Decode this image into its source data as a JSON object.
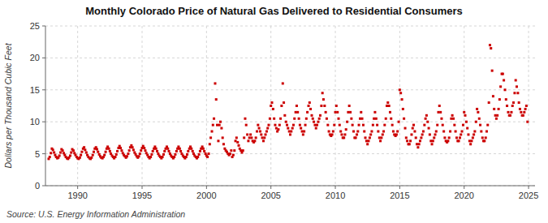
{
  "chart_data": {
    "type": "scatter",
    "title": "Monthly Colorado Price of Natural Gas Delivered to Residential Consumers",
    "ylabel": "Dollars per Thousand Cubic Feet",
    "source": "Source: U.S. Energy Information Administration",
    "color": "#cc0000",
    "marker": "square",
    "grid": true,
    "xlim": [
      1987.5,
      2025.5
    ],
    "ylim": [
      0,
      25
    ],
    "xticks": [
      1990,
      1995,
      2000,
      2005,
      2010,
      2015,
      2020,
      2025
    ],
    "yticks": [
      0,
      5,
      10,
      15,
      20,
      25
    ],
    "x": [
      1987.75,
      1987.83,
      1987.92,
      1988.0,
      1988.08,
      1988.17,
      1988.25,
      1988.33,
      1988.42,
      1988.5,
      1988.58,
      1988.67,
      1988.75,
      1988.83,
      1988.92,
      1989.0,
      1989.08,
      1989.17,
      1989.25,
      1989.33,
      1989.42,
      1989.5,
      1989.58,
      1989.67,
      1989.75,
      1989.83,
      1989.92,
      1990.0,
      1990.08,
      1990.17,
      1990.25,
      1990.33,
      1990.42,
      1990.5,
      1990.58,
      1990.67,
      1990.75,
      1990.83,
      1990.92,
      1991.0,
      1991.08,
      1991.17,
      1991.25,
      1991.33,
      1991.42,
      1991.5,
      1991.58,
      1991.67,
      1991.75,
      1991.83,
      1991.92,
      1992.0,
      1992.08,
      1992.17,
      1992.25,
      1992.33,
      1992.42,
      1992.5,
      1992.58,
      1992.67,
      1992.75,
      1992.83,
      1992.92,
      1993.0,
      1993.08,
      1993.17,
      1993.25,
      1993.33,
      1993.42,
      1993.5,
      1993.58,
      1993.67,
      1993.75,
      1993.83,
      1993.92,
      1994.0,
      1994.08,
      1994.17,
      1994.25,
      1994.33,
      1994.42,
      1994.5,
      1994.58,
      1994.67,
      1994.75,
      1994.83,
      1994.92,
      1995.0,
      1995.08,
      1995.17,
      1995.25,
      1995.33,
      1995.42,
      1995.5,
      1995.58,
      1995.67,
      1995.75,
      1995.83,
      1995.92,
      1996.0,
      1996.08,
      1996.17,
      1996.25,
      1996.33,
      1996.42,
      1996.5,
      1996.58,
      1996.67,
      1996.75,
      1996.83,
      1996.92,
      1997.0,
      1997.08,
      1997.17,
      1997.25,
      1997.33,
      1997.42,
      1997.5,
      1997.58,
      1997.67,
      1997.75,
      1997.83,
      1997.92,
      1998.0,
      1998.08,
      1998.17,
      1998.25,
      1998.33,
      1998.42,
      1998.5,
      1998.58,
      1998.67,
      1998.75,
      1998.83,
      1998.92,
      1999.0,
      1999.08,
      1999.17,
      1999.25,
      1999.33,
      1999.42,
      1999.5,
      1999.58,
      1999.67,
      1999.75,
      1999.83,
      1999.92,
      2000.0,
      2000.08,
      2000.17,
      2000.25,
      2000.33,
      2000.42,
      2000.5,
      2000.58,
      2000.67,
      2000.75,
      2000.83,
      2000.92,
      2001.0,
      2001.08,
      2001.17,
      2001.25,
      2001.33,
      2001.42,
      2001.5,
      2001.58,
      2001.67,
      2001.75,
      2001.83,
      2001.92,
      2002.0,
      2002.08,
      2002.17,
      2002.25,
      2002.33,
      2002.42,
      2002.5,
      2002.58,
      2002.67,
      2002.75,
      2002.83,
      2002.92,
      2003.0,
      2003.08,
      2003.17,
      2003.25,
      2003.33,
      2003.42,
      2003.5,
      2003.58,
      2003.67,
      2003.75,
      2003.83,
      2003.92,
      2004.0,
      2004.08,
      2004.17,
      2004.25,
      2004.33,
      2004.42,
      2004.5,
      2004.58,
      2004.67,
      2004.75,
      2004.83,
      2004.92,
      2005.0,
      2005.08,
      2005.17,
      2005.25,
      2005.33,
      2005.42,
      2005.5,
      2005.58,
      2005.67,
      2005.75,
      2005.83,
      2005.92,
      2006.0,
      2006.08,
      2006.17,
      2006.25,
      2006.33,
      2006.42,
      2006.5,
      2006.58,
      2006.67,
      2006.75,
      2006.83,
      2006.92,
      2007.0,
      2007.08,
      2007.17,
      2007.25,
      2007.33,
      2007.42,
      2007.5,
      2007.58,
      2007.67,
      2007.75,
      2007.83,
      2007.92,
      2008.0,
      2008.08,
      2008.17,
      2008.25,
      2008.33,
      2008.42,
      2008.5,
      2008.58,
      2008.67,
      2008.75,
      2008.83,
      2008.92,
      2009.0,
      2009.08,
      2009.17,
      2009.25,
      2009.33,
      2009.42,
      2009.5,
      2009.58,
      2009.67,
      2009.75,
      2009.83,
      2009.92,
      2010.0,
      2010.08,
      2010.17,
      2010.25,
      2010.33,
      2010.42,
      2010.5,
      2010.58,
      2010.67,
      2010.75,
      2010.83,
      2010.92,
      2011.0,
      2011.08,
      2011.17,
      2011.25,
      2011.33,
      2011.42,
      2011.5,
      2011.58,
      2011.67,
      2011.75,
      2011.83,
      2011.92,
      2012.0,
      2012.08,
      2012.17,
      2012.25,
      2012.33,
      2012.42,
      2012.5,
      2012.58,
      2012.67,
      2012.75,
      2012.83,
      2012.92,
      2013.0,
      2013.08,
      2013.17,
      2013.25,
      2013.33,
      2013.42,
      2013.5,
      2013.58,
      2013.67,
      2013.75,
      2013.83,
      2013.92,
      2014.0,
      2014.08,
      2014.17,
      2014.25,
      2014.33,
      2014.42,
      2014.5,
      2014.58,
      2014.67,
      2014.75,
      2014.83,
      2014.92,
      2015.0,
      2015.08,
      2015.17,
      2015.25,
      2015.33,
      2015.42,
      2015.5,
      2015.58,
      2015.67,
      2015.75,
      2015.83,
      2015.92,
      2016.0,
      2016.08,
      2016.17,
      2016.25,
      2016.33,
      2016.42,
      2016.5,
      2016.58,
      2016.67,
      2016.75,
      2016.83,
      2016.92,
      2017.0,
      2017.08,
      2017.17,
      2017.25,
      2017.33,
      2017.42,
      2017.5,
      2017.58,
      2017.67,
      2017.75,
      2017.83,
      2017.92,
      2018.0,
      2018.08,
      2018.17,
      2018.25,
      2018.33,
      2018.42,
      2018.5,
      2018.58,
      2018.67,
      2018.75,
      2018.83,
      2018.92,
      2019.0,
      2019.08,
      2019.17,
      2019.25,
      2019.33,
      2019.42,
      2019.5,
      2019.58,
      2019.67,
      2019.75,
      2019.83,
      2019.92,
      2020.0,
      2020.08,
      2020.17,
      2020.25,
      2020.33,
      2020.42,
      2020.5,
      2020.58,
      2020.67,
      2020.75,
      2020.83,
      2020.92,
      2021.0,
      2021.08,
      2021.17,
      2021.25,
      2021.33,
      2021.42,
      2021.5,
      2021.58,
      2021.67,
      2021.75,
      2021.83,
      2021.92,
      2022.0,
      2022.08,
      2022.17,
      2022.25,
      2022.33,
      2022.42,
      2022.5,
      2022.58,
      2022.67,
      2022.75,
      2022.83,
      2022.92,
      2023.0,
      2023.08,
      2023.17,
      2023.25,
      2023.33,
      2023.42,
      2023.5,
      2023.58,
      2023.67,
      2023.75,
      2023.83,
      2023.92,
      2024.0,
      2024.08,
      2024.17,
      2024.25,
      2024.33,
      2024.42,
      2024.5,
      2024.58,
      2024.67,
      2024.75,
      2024.83,
      2024.92
    ],
    "values": [
      4.2,
      4.5,
      5.1,
      5.8,
      5.6,
      5.2,
      4.8,
      4.5,
      4.3,
      4.4,
      4.7,
      5.2,
      5.7,
      5.5,
      5.1,
      4.8,
      4.5,
      4.3,
      4.2,
      4.4,
      4.7,
      5.2,
      5.7,
      5.5,
      5.1,
      4.8,
      4.5,
      4.3,
      4.2,
      4.4,
      4.8,
      5.3,
      5.8,
      6.0,
      5.6,
      5.2,
      4.8,
      4.5,
      4.3,
      4.2,
      4.4,
      4.8,
      5.3,
      5.8,
      6.0,
      5.7,
      5.3,
      4.9,
      4.6,
      4.4,
      4.3,
      4.5,
      4.8,
      5.3,
      5.8,
      6.1,
      5.8,
      5.4,
      5.0,
      4.7,
      4.5,
      4.3,
      4.5,
      4.9,
      5.4,
      5.9,
      6.2,
      5.9,
      5.5,
      5.1,
      4.8,
      4.6,
      4.4,
      4.6,
      5.0,
      5.5,
      6.0,
      6.3,
      6.0,
      5.6,
      5.2,
      4.9,
      4.6,
      4.4,
      4.6,
      5.0,
      5.5,
      5.9,
      6.2,
      5.9,
      5.5,
      5.1,
      4.8,
      4.5,
      4.3,
      4.5,
      4.9,
      5.4,
      5.8,
      6.1,
      5.8,
      5.4,
      5.0,
      4.7,
      4.5,
      4.3,
      4.5,
      4.9,
      5.4,
      5.8,
      6.1,
      5.8,
      5.4,
      5.0,
      4.7,
      4.5,
      4.3,
      4.5,
      4.9,
      5.4,
      5.8,
      6.1,
      5.8,
      5.4,
      5.0,
      4.7,
      4.5,
      4.3,
      4.5,
      4.9,
      5.4,
      5.8,
      6.1,
      5.8,
      5.4,
      5.0,
      4.7,
      4.5,
      4.3,
      4.5,
      4.9,
      5.4,
      5.8,
      6.1,
      5.8,
      5.4,
      5.0,
      4.7,
      4.5,
      5.0,
      6.5,
      7.5,
      8.5,
      9.5,
      10.5,
      16.0,
      13.5,
      9.5,
      7.0,
      9.5,
      10.0,
      9.0,
      7.5,
      6.5,
      5.8,
      5.5,
      5.3,
      5.0,
      4.8,
      5.0,
      5.5,
      4.5,
      4.8,
      5.5,
      7.0,
      7.5,
      6.8,
      6.3,
      5.8,
      5.5,
      5.2,
      5.5,
      7.5,
      10.5,
      9.5,
      8.0,
      7.0,
      7.5,
      8.0,
      7.5,
      7.0,
      6.8,
      7.0,
      7.5,
      8.5,
      9.5,
      9.0,
      8.5,
      8.0,
      7.5,
      7.0,
      7.5,
      8.0,
      8.5,
      9.0,
      9.5,
      10.5,
      12.5,
      13.0,
      12.0,
      10.5,
      9.5,
      9.0,
      8.5,
      8.8,
      9.5,
      10.5,
      12.5,
      16.0,
      13.0,
      11.0,
      10.0,
      9.5,
      9.0,
      8.5,
      8.0,
      8.5,
      9.0,
      9.5,
      10.5,
      11.5,
      12.5,
      11.5,
      10.5,
      9.5,
      9.0,
      8.5,
      8.0,
      8.5,
      9.5,
      10.5,
      11.5,
      12.5,
      13.0,
      12.0,
      11.0,
      10.5,
      10.0,
      9.5,
      9.0,
      9.5,
      10.0,
      10.5,
      11.0,
      12.5,
      14.5,
      13.5,
      12.5,
      11.5,
      10.5,
      9.5,
      8.5,
      8.0,
      7.8,
      8.0,
      8.5,
      9.5,
      11.5,
      12.5,
      11.5,
      10.5,
      9.5,
      8.5,
      8.0,
      7.5,
      7.5,
      8.0,
      8.8,
      10.0,
      11.5,
      12.5,
      11.5,
      10.5,
      9.5,
      8.5,
      7.5,
      7.5,
      8.0,
      8.5,
      9.5,
      10.5,
      11.5,
      10.5,
      9.5,
      8.5,
      7.5,
      7.0,
      6.5,
      7.0,
      7.5,
      8.0,
      8.5,
      9.5,
      10.5,
      11.5,
      10.5,
      9.5,
      8.5,
      7.5,
      7.0,
      7.5,
      8.0,
      8.5,
      9.5,
      10.5,
      12.5,
      13.0,
      12.5,
      11.5,
      10.5,
      9.5,
      8.5,
      8.0,
      7.8,
      8.0,
      8.5,
      10.0,
      15.0,
      14.5,
      13.5,
      12.0,
      10.5,
      9.0,
      7.5,
      7.0,
      6.5,
      6.5,
      7.0,
      8.0,
      9.0,
      9.5,
      8.5,
      7.5,
      6.5,
      6.0,
      6.5,
      7.0,
      7.5,
      8.0,
      8.5,
      9.5,
      10.5,
      11.0,
      10.0,
      9.0,
      8.0,
      7.0,
      6.5,
      7.0,
      7.5,
      8.0,
      8.5,
      9.5,
      11.5,
      12.5,
      11.5,
      10.5,
      9.5,
      8.5,
      7.5,
      7.0,
      6.8,
      7.0,
      7.5,
      8.5,
      10.5,
      11.0,
      10.5,
      9.5,
      8.5,
      7.5,
      7.0,
      7.0,
      7.5,
      8.0,
      8.5,
      9.5,
      11.5,
      11.0,
      10.0,
      9.0,
      8.0,
      7.0,
      6.5,
      7.0,
      7.5,
      8.0,
      8.5,
      10.0,
      12.0,
      11.5,
      10.5,
      9.5,
      8.5,
      7.5,
      7.0,
      7.0,
      7.5,
      8.5,
      9.5,
      13.0,
      22.0,
      21.5,
      18.0,
      14.0,
      12.0,
      11.0,
      10.5,
      11.0,
      12.0,
      13.5,
      15.5,
      17.5,
      17.5,
      16.5,
      15.0,
      13.5,
      12.5,
      11.5,
      11.0,
      11.0,
      11.5,
      12.5,
      13.0,
      14.5,
      16.5,
      15.5,
      14.5,
      13.0,
      12.0,
      11.5,
      11.0,
      11.0,
      11.5,
      12.0,
      12.5,
      10.0
    ]
  }
}
